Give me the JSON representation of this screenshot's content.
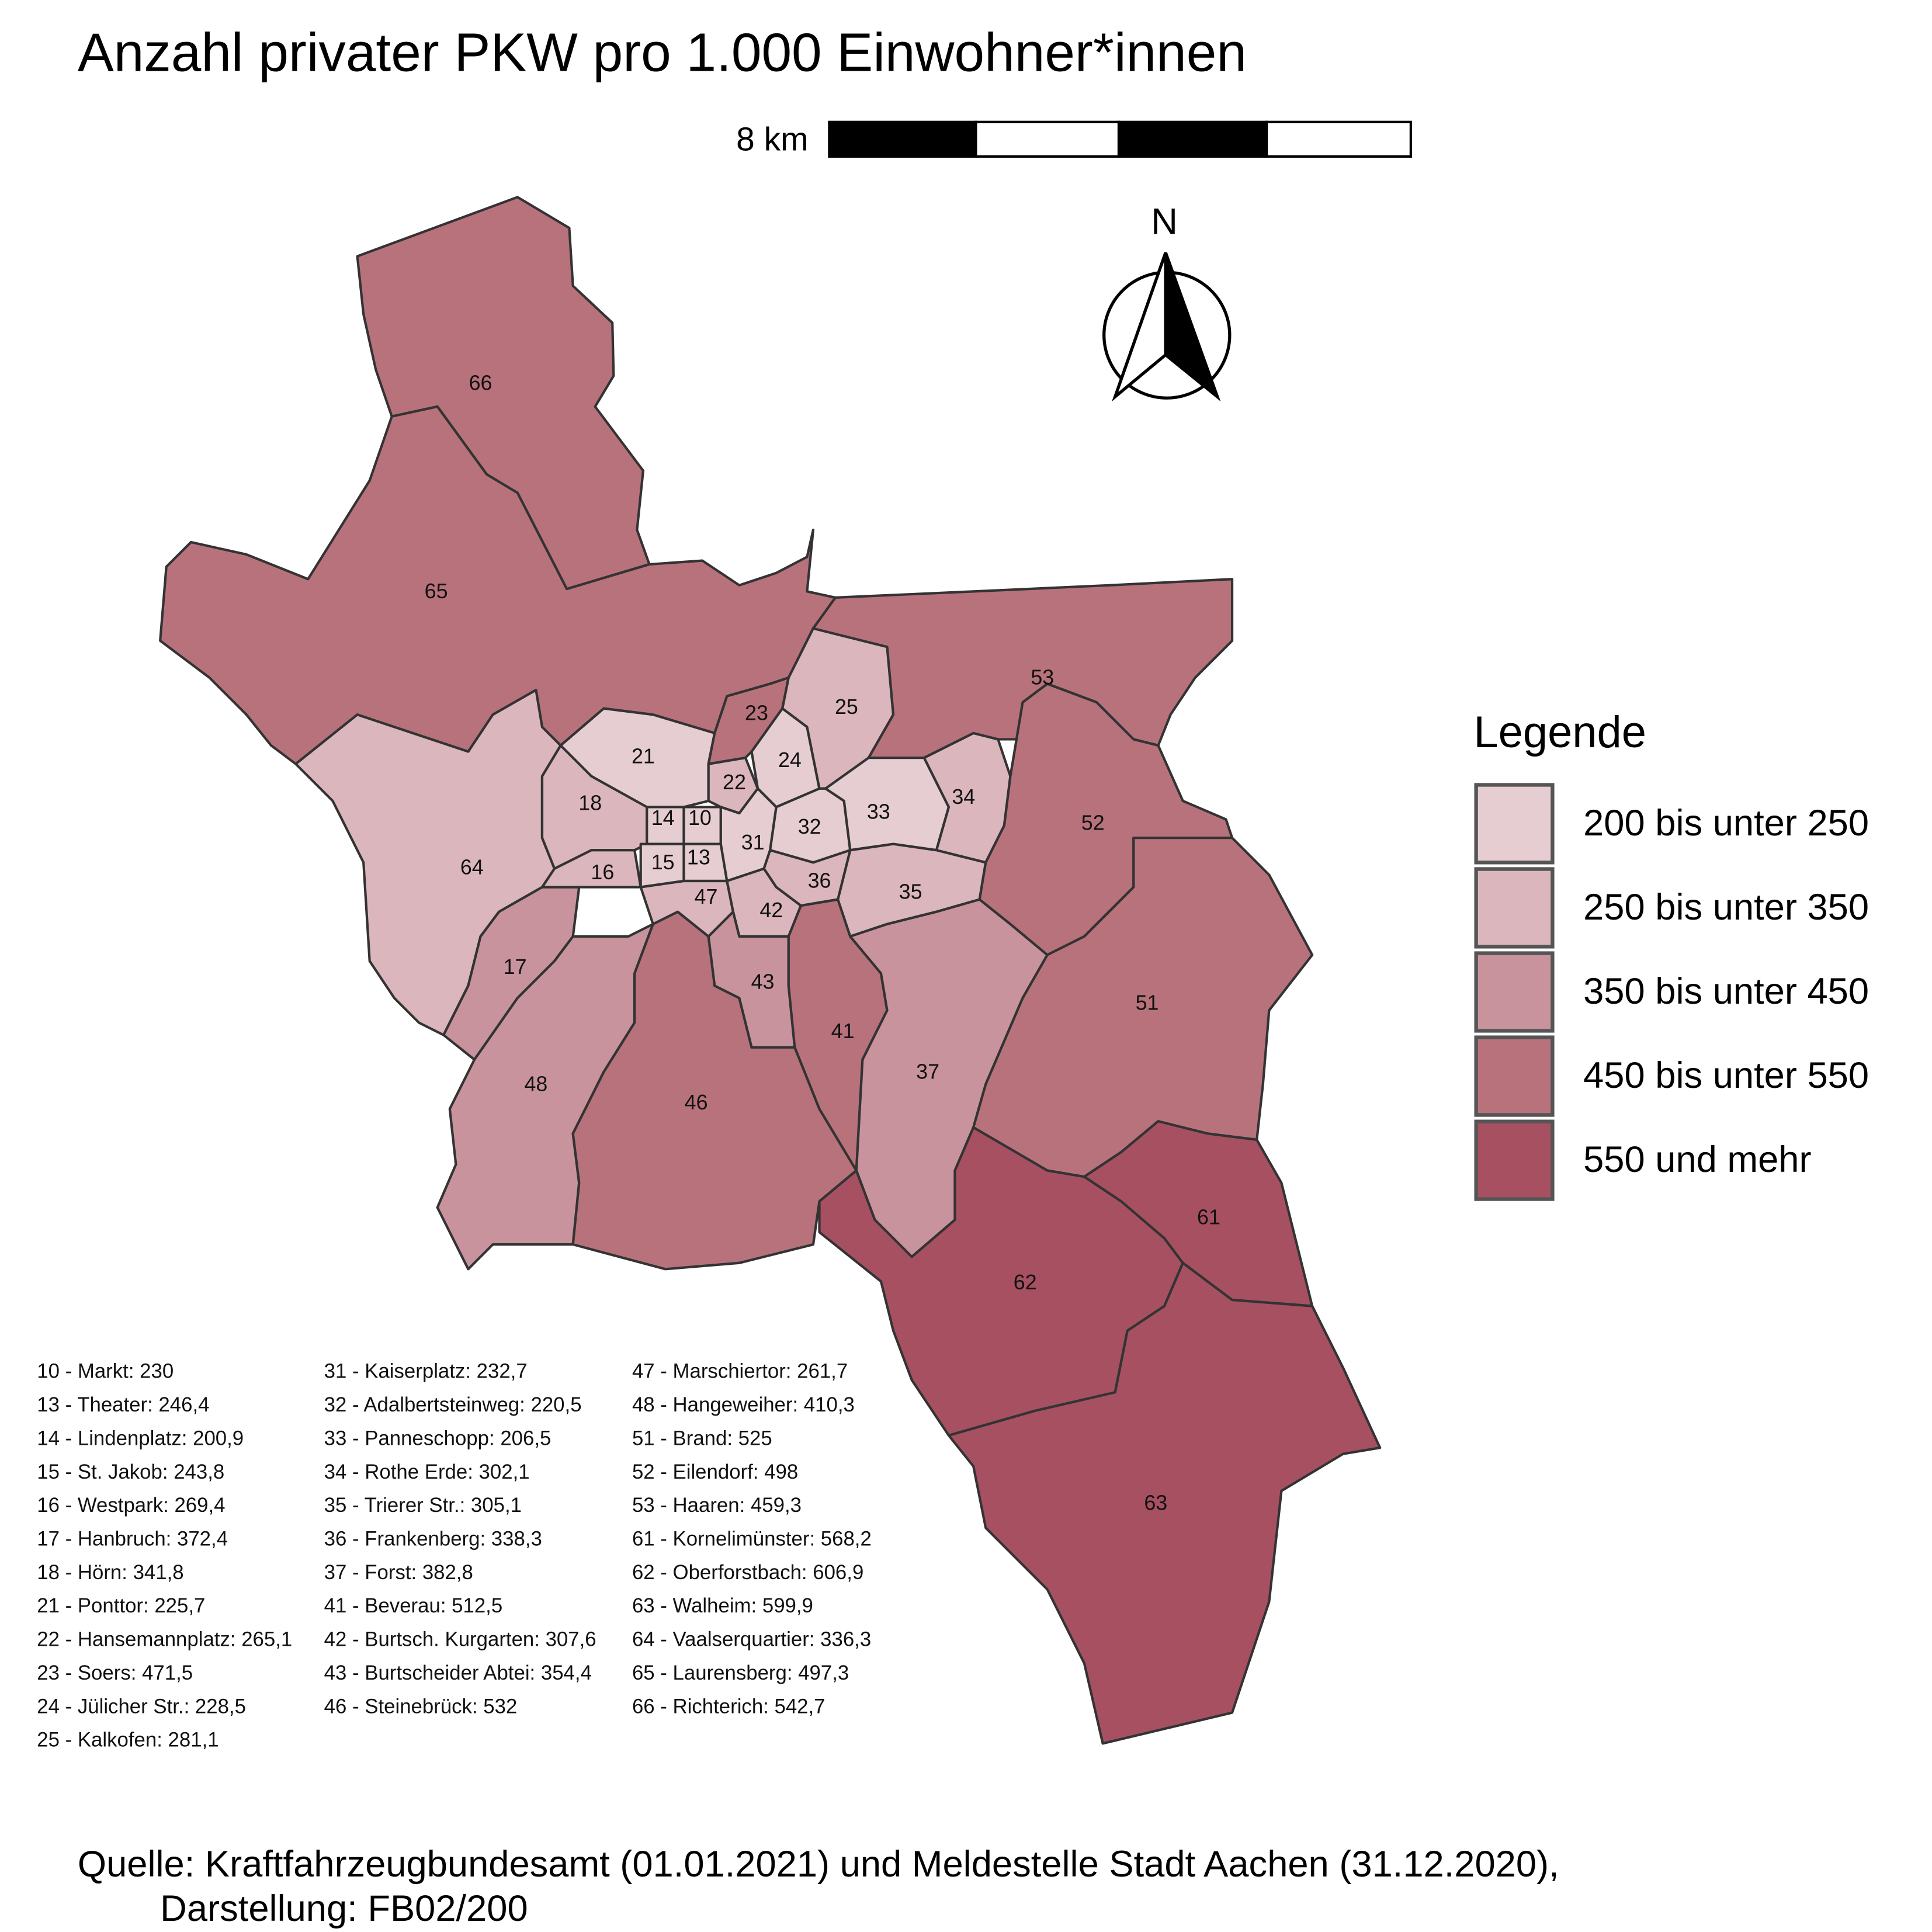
{
  "header": {
    "title": "Anzahl privater PKW pro 1.000 Einwohner*innen"
  },
  "scale_bar": {
    "label": "8 km"
  },
  "north_arrow": {
    "label": "N"
  },
  "legend": {
    "title": "Legende",
    "items": [
      {
        "label": "200 bis unter 250",
        "color": "#e6cdd2"
      },
      {
        "label": "250 bis unter 350",
        "color": "#dbb6bd"
      },
      {
        "label": "350 bis unter 450",
        "color": "#c8939d"
      },
      {
        "label": "450 bis unter 550",
        "color": "#b8727c"
      },
      {
        "label": "550 und mehr",
        "color": "#a65062"
      }
    ]
  },
  "districts": [
    {
      "label": "66",
      "color": "#b8727c"
    },
    {
      "label": "65",
      "color": "#b8727c"
    },
    {
      "label": "64",
      "color": "#dbb6bd"
    },
    {
      "label": "17",
      "color": "#c8939d"
    },
    {
      "label": "48",
      "color": "#c8939d"
    },
    {
      "label": "46",
      "color": "#b8727c"
    },
    {
      "label": "21",
      "color": "#e6cdd2"
    },
    {
      "label": "18",
      "color": "#dbb6bd"
    },
    {
      "label": "16",
      "color": "#dbb6bd"
    },
    {
      "label": "14",
      "color": "#e6cdd2"
    },
    {
      "label": "10",
      "color": "#e6cdd2"
    },
    {
      "label": "15",
      "color": "#e6cdd2"
    },
    {
      "label": "13",
      "color": "#e6cdd2"
    },
    {
      "label": "22",
      "color": "#dbb6bd"
    },
    {
      "label": "23",
      "color": "#b8727c"
    },
    {
      "label": "24",
      "color": "#e6cdd2"
    },
    {
      "label": "25",
      "color": "#dbb6bd"
    },
    {
      "label": "31",
      "color": "#e6cdd2"
    },
    {
      "label": "32",
      "color": "#e6cdd2"
    },
    {
      "label": "33",
      "color": "#e6cdd2"
    },
    {
      "label": "34",
      "color": "#dbb6bd"
    },
    {
      "label": "35",
      "color": "#dbb6bd"
    },
    {
      "label": "36",
      "color": "#dbb6bd"
    },
    {
      "label": "47",
      "color": "#dbb6bd"
    },
    {
      "label": "42",
      "color": "#dbb6bd"
    },
    {
      "label": "43",
      "color": "#c8939d"
    },
    {
      "label": "41",
      "color": "#b8727c"
    },
    {
      "label": "37",
      "color": "#c8939d"
    },
    {
      "label": "53",
      "color": "#b8727c"
    },
    {
      "label": "52",
      "color": "#b8727c"
    },
    {
      "label": "51",
      "color": "#b8727c"
    },
    {
      "label": "62",
      "color": "#a65062"
    },
    {
      "label": "61",
      "color": "#a65062"
    },
    {
      "label": "63",
      "color": "#a65062"
    }
  ],
  "list": {
    "columns": [
      [
        "10 - Markt: 230",
        "13 - Theater: 246,4",
        "14 - Lindenplatz: 200,9",
        "15 - St. Jakob: 243,8",
        "16 - Westpark: 269,4",
        "17 - Hanbruch: 372,4",
        "18 - Hörn: 341,8",
        "21 - Ponttor: 225,7",
        "22 - Hansemannplatz: 265,1",
        "23 - Soers: 471,5",
        "24 - Jülicher Str.: 228,5",
        "25 - Kalkofen: 281,1"
      ],
      [
        "31 - Kaiserplatz: 232,7",
        "32 - Adalbertsteinweg: 220,5",
        "33 - Panneschopp: 206,5",
        "34 - Rothe Erde: 302,1",
        "35 - Trierer Str.: 305,1",
        "36 - Frankenberg: 338,3",
        "37 - Forst: 382,8",
        "41 - Beverau: 512,5",
        "42 - Burtsch. Kurgarten: 307,6",
        "43 - Burtscheider Abtei: 354,4",
        "46 - Steinebrück: 532"
      ],
      [
        "47 - Marschiertor: 261,7",
        "48 - Hangeweiher: 410,3",
        "51 - Brand: 525",
        "52 - Eilendorf: 498",
        "53 - Haaren: 459,3",
        "61 - Kornelimünster: 568,2",
        "62 - Oberforstbach: 606,9",
        "63 - Walheim: 599,9",
        "64 - Vaalserquartier: 336,3",
        "65 - Laurensberg: 497,3",
        "66 - Richterich: 542,7"
      ]
    ]
  },
  "source": {
    "lines": [
      "Quelle: Kraftfahrzeugbundesamt (01.01.2021) und Meldestelle Stadt Aachen (31.12.2020),",
      "Darstellung: FB02/200"
    ]
  }
}
